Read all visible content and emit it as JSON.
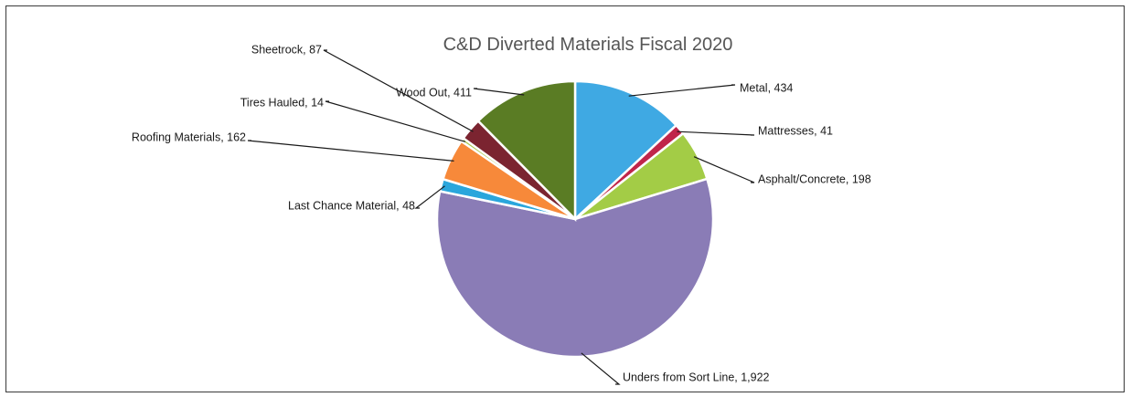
{
  "chart_data": {
    "type": "pie",
    "title": "C&D Diverted Materials Fiscal 2020",
    "slices": [
      {
        "label": "Metal",
        "value": 434,
        "value_text": "434",
        "color": "#3fa9e3"
      },
      {
        "label": "Mattresses",
        "value": 41,
        "value_text": "41",
        "color": "#c0254a"
      },
      {
        "label": "Asphalt/Concrete",
        "value": 198,
        "value_text": "198",
        "color": "#a3cc46"
      },
      {
        "label": "Unders from Sort Line",
        "value": 1922,
        "value_text": "1,922",
        "color": "#8a7cb6"
      },
      {
        "label": "Last Chance Material",
        "value": 48,
        "value_text": "48",
        "color": "#2aa6dc"
      },
      {
        "label": "Roofing Materials",
        "value": 162,
        "value_text": "162",
        "color": "#f7893a"
      },
      {
        "label": "Tires Hauled",
        "value": 14,
        "value_text": "14",
        "color": "#a7c64b"
      },
      {
        "label": "Sheetrock",
        "value": 87,
        "value_text": "87",
        "color": "#7b2430"
      },
      {
        "label": "Wood Out",
        "value": 411,
        "value_text": "411",
        "color": "#5a7c24"
      }
    ],
    "start_angle": "top, clockwise",
    "legend": "none",
    "data_labels": "outside with leader lines"
  }
}
